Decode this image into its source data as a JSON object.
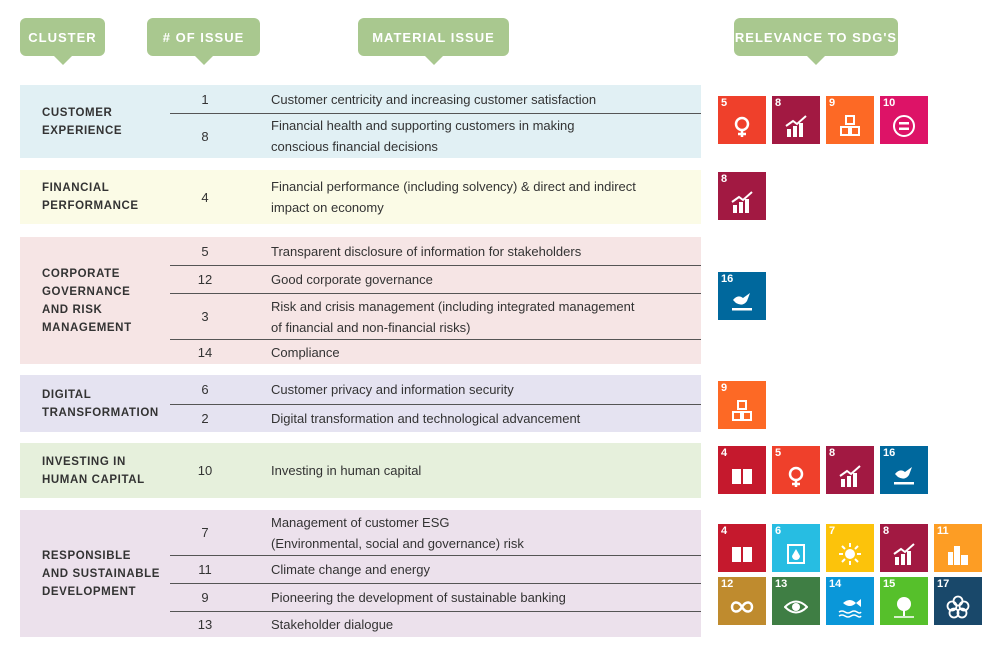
{
  "headers": {
    "cluster": "CLUSTER",
    "num_issue": "# OF ISSUE",
    "material_issue": "MATERIAL ISSUE",
    "relevance": "RELEVANCE TO SDG'S"
  },
  "sdg_colors": {
    "4": "#c5192d",
    "5": "#ef402b",
    "6": "#27bde2",
    "7": "#fcc30b",
    "8": "#a21942",
    "9": "#fd6925",
    "10": "#dd1367",
    "11": "#fd9d24",
    "12": "#bf8b2e",
    "13": "#3f7e44",
    "14": "#0a97d9",
    "15": "#56c02b",
    "16": "#00689d",
    "17": "#19486a"
  },
  "sdg_icons": {
    "4": "book-icon",
    "5": "gender-icon",
    "6": "water-drop-icon",
    "7": "sun-icon",
    "8": "growth-chart-icon",
    "9": "cubes-icon",
    "10": "equality-icon",
    "11": "buildings-icon",
    "12": "infinity-icon",
    "13": "eye-globe-icon",
    "14": "fish-icon",
    "15": "tree-icon",
    "16": "dove-icon",
    "17": "flower-rings-icon"
  },
  "clusters": [
    {
      "name": "CUSTOMER\nEXPERIENCE",
      "bg": "#e1f0f4",
      "issues": [
        {
          "num": "1",
          "text": "Customer centricity and increasing customer satisfaction"
        },
        {
          "num": "8",
          "text": "Financial health and supporting customers in making\nconscious financial decisions"
        }
      ],
      "sdgs": [
        [
          "5",
          "8",
          "9",
          "10"
        ]
      ]
    },
    {
      "name": "FINANCIAL\nPERFORMANCE",
      "bg": "#fbfbe6",
      "issues": [
        {
          "num": "4",
          "text": "Financial performance (including solvency) & direct and indirect\nimpact on economy"
        }
      ],
      "sdgs": [
        [
          "8"
        ]
      ]
    },
    {
      "name": "CORPORATE\nGOVERNANCE\nAND RISK\nMANAGEMENT",
      "bg": "#f6e5e5",
      "issues": [
        {
          "num": "5",
          "text": "Transparent disclosure of information for stakeholders"
        },
        {
          "num": "12",
          "text": "Good corporate governance"
        },
        {
          "num": "3",
          "text": "Risk and crisis management (including integrated management\nof financial and non-financial risks)"
        },
        {
          "num": "14",
          "text": "Compliance"
        }
      ],
      "sdgs": [
        [
          "16"
        ]
      ]
    },
    {
      "name": "DIGITAL\nTRANSFORMATION",
      "bg": "#e5e3f1",
      "issues": [
        {
          "num": "6",
          "text": "Customer privacy and information security"
        },
        {
          "num": "2",
          "text": "Digital transformation and technological advancement"
        }
      ],
      "sdgs": [
        [
          "9"
        ]
      ]
    },
    {
      "name": "INVESTING IN\nHUMAN CAPITAL",
      "bg": "#e6f0dc",
      "issues": [
        {
          "num": "10",
          "text": "Investing in human capital"
        }
      ],
      "sdgs": [
        [
          "4",
          "5",
          "8",
          "16"
        ]
      ]
    },
    {
      "name": "RESPONSIBLE\nAND SUSTAINABLE\nDEVELOPMENT",
      "bg": "#ece1ec",
      "issues": [
        {
          "num": "7",
          "text": "Management of customer ESG\n(Environmental, social and governance) risk"
        },
        {
          "num": "11",
          "text": "Climate change and energy"
        },
        {
          "num": "9",
          "text": "Pioneering the development of sustainable banking"
        },
        {
          "num": "13",
          "text": "Stakeholder dialogue"
        }
      ],
      "sdgs": [
        [
          "4",
          "6",
          "7",
          "8",
          "11"
        ],
        [
          "12",
          "13",
          "14",
          "15",
          "17"
        ]
      ]
    }
  ]
}
